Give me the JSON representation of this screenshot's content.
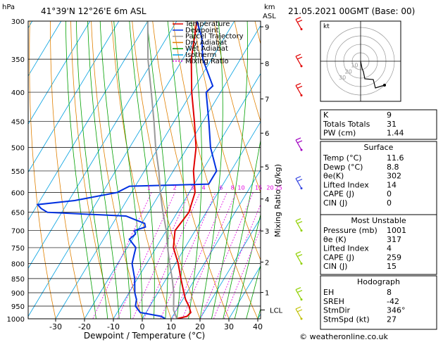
{
  "header": {
    "hpa_label": "hPa",
    "location": "41°39'N  12°26'E  6m  ASL",
    "km_label": "km",
    "asl_label": "ASL",
    "datetime": "21.05.2021  00GMT  (Base: 00)"
  },
  "legend": [
    {
      "label": "Temperature",
      "color": "#e00000",
      "dash": ""
    },
    {
      "label": "Dewpoint",
      "color": "#0030e0",
      "dash": ""
    },
    {
      "label": "Parcel Trajectory",
      "color": "#999999",
      "dash": ""
    },
    {
      "label": "Dry Adiabat",
      "color": "#e08000",
      "dash": ""
    },
    {
      "label": "Wet Adiabat",
      "color": "#00a000",
      "dash": ""
    },
    {
      "label": "Isotherm",
      "color": "#00a0e0",
      "dash": ""
    },
    {
      "label": "Mixing Ratio",
      "color": "#e000e0",
      "dash": "2,2"
    }
  ],
  "chart_data": {
    "type": "line",
    "xlabel": "Dewpoint / Temperature (°C)",
    "ylabel_right": "Mixing Ratio (g/kg)",
    "x_ticks": [
      -30,
      -20,
      -10,
      0,
      10,
      20,
      30,
      40
    ],
    "pressure_levels": [
      300,
      350,
      400,
      450,
      500,
      550,
      600,
      650,
      700,
      750,
      800,
      850,
      900,
      950,
      1000
    ],
    "km_ticks": [
      {
        "label": "9",
        "p": 307
      },
      {
        "label": "8",
        "p": 356
      },
      {
        "label": "7",
        "p": 411
      },
      {
        "label": "6",
        "p": 472
      },
      {
        "label": "5",
        "p": 541
      },
      {
        "label": "4",
        "p": 616
      },
      {
        "label": "3",
        "p": 701
      },
      {
        "label": "2",
        "p": 795
      },
      {
        "label": "1",
        "p": 899
      }
    ],
    "lcl": {
      "label": "LCL",
      "p": 965
    },
    "mixing_ratio_labels": [
      {
        "label": "1",
        "t": -24
      },
      {
        "label": "2",
        "t": -15
      },
      {
        "label": "3",
        "t": -9
      },
      {
        "label": "4",
        "t": -5
      },
      {
        "label": "6",
        "t": 1
      },
      {
        "label": "8",
        "t": 5
      },
      {
        "label": "10",
        "t": 8
      },
      {
        "label": "15",
        "t": 14
      },
      {
        "label": "20",
        "t": 18
      },
      {
        "label": "25",
        "t": 21
      }
    ],
    "series": [
      {
        "name": "Temperature",
        "color": "#e00000",
        "points": [
          [
            1000,
            12
          ],
          [
            990,
            15
          ],
          [
            975,
            15.5
          ],
          [
            950,
            13.5
          ],
          [
            925,
            11
          ],
          [
            900,
            9
          ],
          [
            850,
            5
          ],
          [
            800,
            1
          ],
          [
            750,
            -4
          ],
          [
            700,
            -7
          ],
          [
            650,
            -6
          ],
          [
            600,
            -8
          ],
          [
            550,
            -13
          ],
          [
            500,
            -17
          ],
          [
            450,
            -23
          ],
          [
            400,
            -30
          ],
          [
            350,
            -37
          ],
          [
            300,
            -43
          ]
        ]
      },
      {
        "name": "Dewpoint",
        "color": "#0030e0",
        "points": [
          [
            1000,
            8
          ],
          [
            990,
            6
          ],
          [
            975,
            -2
          ],
          [
            950,
            -5
          ],
          [
            925,
            -6
          ],
          [
            900,
            -8
          ],
          [
            850,
            -11
          ],
          [
            800,
            -15
          ],
          [
            775,
            -16
          ],
          [
            750,
            -17
          ],
          [
            725,
            -21
          ],
          [
            710,
            -20
          ],
          [
            700,
            -21
          ],
          [
            690,
            -18
          ],
          [
            680,
            -19
          ],
          [
            670,
            -23
          ],
          [
            660,
            -27
          ],
          [
            650,
            -55
          ],
          [
            640,
            -58
          ],
          [
            630,
            -60
          ],
          [
            620,
            -48
          ],
          [
            600,
            -35
          ],
          [
            585,
            -32
          ],
          [
            580,
            -5
          ],
          [
            550,
            -5
          ],
          [
            500,
            -12
          ],
          [
            450,
            -18
          ],
          [
            400,
            -25
          ],
          [
            390,
            -24
          ],
          [
            350,
            -33
          ],
          [
            320,
            -38
          ],
          [
            300,
            -43
          ]
        ]
      },
      {
        "name": "Parcel Trajectory",
        "color": "#999999",
        "points": [
          [
            1000,
            12
          ],
          [
            965,
            9
          ],
          [
            900,
            5.5
          ],
          [
            850,
            2
          ],
          [
            800,
            -2
          ],
          [
            750,
            -6
          ],
          [
            700,
            -10
          ],
          [
            650,
            -15
          ],
          [
            600,
            -20
          ],
          [
            550,
            -25
          ],
          [
            500,
            -31
          ],
          [
            450,
            -37
          ],
          [
            400,
            -44
          ],
          [
            350,
            -52
          ],
          [
            300,
            -60
          ]
        ]
      }
    ]
  },
  "hodograph": {
    "unit_label": "kt",
    "ring_labels": [
      "10",
      "20",
      "30"
    ]
  },
  "table1": [
    {
      "label": "K",
      "value": "9"
    },
    {
      "label": "Totals Totals",
      "value": "31"
    },
    {
      "label": "PW (cm)",
      "value": "1.44"
    }
  ],
  "surface": {
    "title": "Surface",
    "rows": [
      {
        "label": "Temp (°C)",
        "value": "11.6"
      },
      {
        "label": "Dewp (°C)",
        "value": "8.8"
      },
      {
        "label": "θe(K)",
        "value": "302"
      },
      {
        "label": "Lifted Index",
        "value": "14"
      },
      {
        "label": "CAPE (J)",
        "value": "0"
      },
      {
        "label": "CIN (J)",
        "value": "0"
      }
    ]
  },
  "unstable": {
    "title": "Most Unstable",
    "rows": [
      {
        "label": "Pressure (mb)",
        "value": "1001"
      },
      {
        "label": "θe (K)",
        "value": "317"
      },
      {
        "label": "Lifted Index",
        "value": "4"
      },
      {
        "label": "CAPE (J)",
        "value": "259"
      },
      {
        "label": "CIN (J)",
        "value": "15"
      }
    ]
  },
  "hodo_table": {
    "title": "Hodograph",
    "rows": [
      {
        "label": "EH",
        "value": "8"
      },
      {
        "label": "SREH",
        "value": "-42"
      },
      {
        "label": "StmDir",
        "value": "346°"
      },
      {
        "label": "StmSpd (kt)",
        "value": "27"
      }
    ]
  },
  "footer": {
    "copyright": "© weatheronline.co.uk"
  }
}
